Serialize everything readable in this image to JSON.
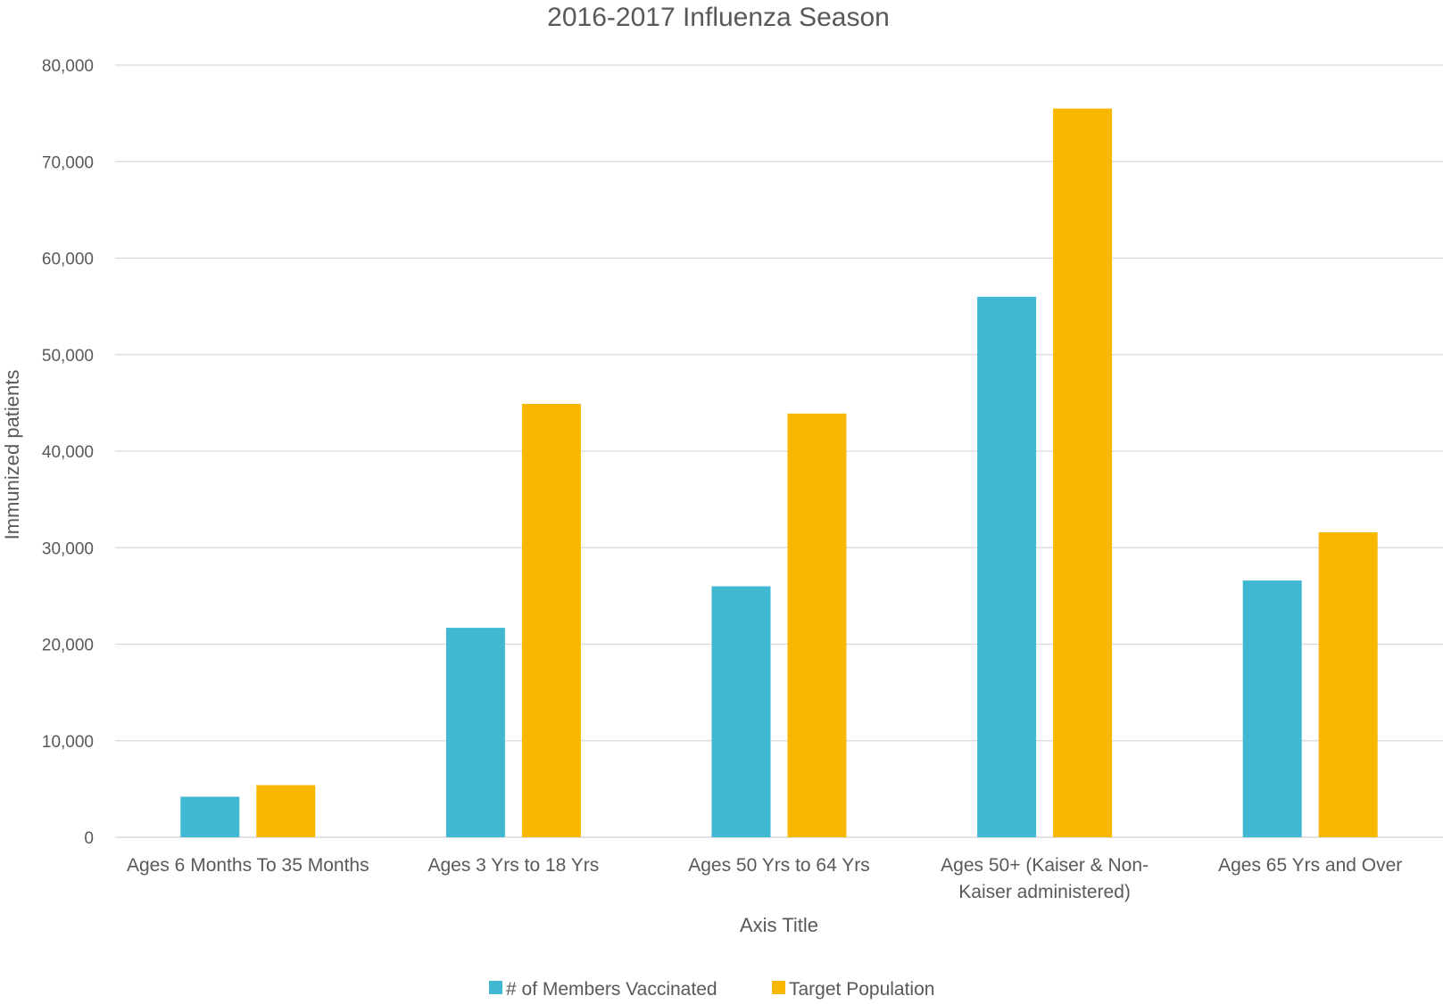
{
  "chart_data": {
    "type": "bar",
    "title": "2016-2017 Influenza Season",
    "xlabel": "Axis Title",
    "ylabel": "Immunized patients",
    "ylim": [
      0,
      80000
    ],
    "y_ticks": [
      0,
      10000,
      20000,
      30000,
      40000,
      50000,
      60000,
      70000,
      80000
    ],
    "y_tick_labels": [
      "0",
      "10,000",
      "20,000",
      "30,000",
      "40,000",
      "50,000",
      "60,000",
      "70,000",
      "80,000"
    ],
    "grid": true,
    "legend_position": "bottom",
    "categories": [
      [
        "Ages 6 Months To 35 Months"
      ],
      [
        "Ages 3 Yrs to 18 Yrs"
      ],
      [
        "Ages 50 Yrs to 64 Yrs"
      ],
      [
        "Ages 50+ (Kaiser & Non-",
        "Kaiser administered)"
      ],
      [
        "Ages 65 Yrs and Over"
      ]
    ],
    "series": [
      {
        "name": "# of Members Vaccinated",
        "color": "#41b8d2",
        "values": [
          4200,
          21700,
          26000,
          56000,
          26600
        ]
      },
      {
        "name": "Target Population",
        "color": "#f8b800",
        "values": [
          5400,
          44900,
          43900,
          75500,
          31600
        ]
      }
    ]
  }
}
